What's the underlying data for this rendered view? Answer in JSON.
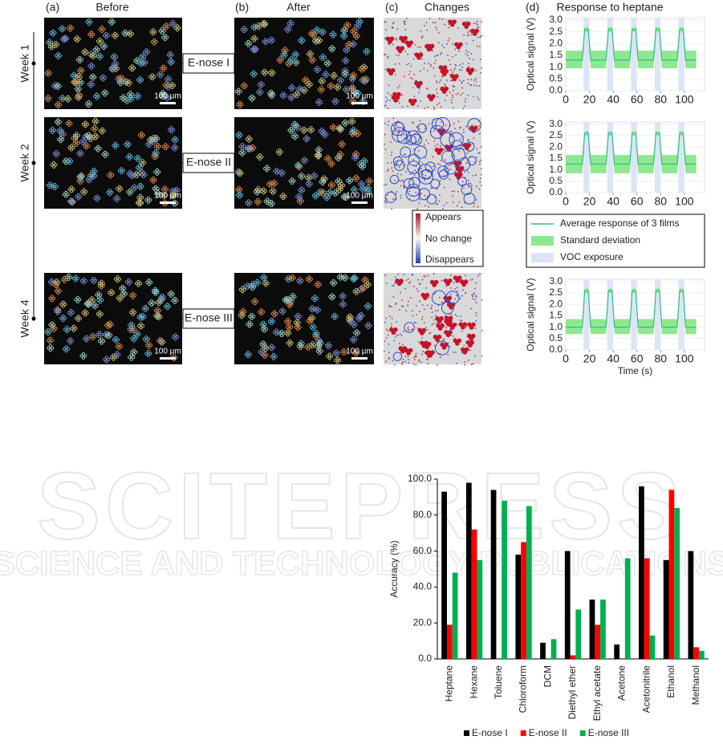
{
  "figure": {
    "panel_labels": [
      "(a)",
      "(b)",
      "(c)",
      "(d)"
    ],
    "column_titles": [
      "Before",
      "After",
      "Changes",
      "Response to heptane"
    ],
    "row_labels": [
      "Week 1",
      "Week 2",
      "Week 4"
    ],
    "enose_labels": [
      "E-nose I",
      "E-nose II",
      "E-nose III"
    ],
    "scale_bar": "100 µm",
    "change_legend": [
      "Appears",
      "No change",
      "Disappears"
    ],
    "response_legend": [
      {
        "label": "Average response of 3 films",
        "color": "#2bbf8a"
      },
      {
        "label": "Standard deviation",
        "color": "#8fe88f"
      },
      {
        "label": "VOC exposure",
        "color": "#dde4f6"
      }
    ],
    "watermark": [
      "SCITEPRESS",
      "SCIENCE AND TECHNOLOGY PUBLICATIONS"
    ]
  },
  "chart_data": [
    {
      "type": "line",
      "ylabel": "Optical signal (V)",
      "x": [
        0,
        14,
        16,
        19,
        21,
        34,
        36,
        39,
        41,
        54,
        56,
        59,
        61,
        74,
        76,
        79,
        81,
        94,
        96,
        99,
        101,
        110
      ],
      "values": [
        1.3,
        1.3,
        2.6,
        2.6,
        1.3,
        1.3,
        2.6,
        2.6,
        1.3,
        1.3,
        2.6,
        2.6,
        1.3,
        1.3,
        2.6,
        2.6,
        1.3,
        1.3,
        2.6,
        2.6,
        1.3,
        1.3
      ],
      "lower": [
        0.95,
        0.95,
        2.5,
        2.5,
        0.95,
        0.95,
        2.5,
        2.5,
        0.95,
        0.95,
        2.5,
        2.5,
        0.95,
        0.95,
        2.5,
        2.5,
        0.95,
        0.95,
        2.5,
        2.5,
        0.95,
        0.95
      ],
      "upper": [
        1.7,
        1.7,
        2.7,
        2.7,
        1.7,
        1.7,
        2.7,
        2.7,
        1.7,
        1.7,
        2.7,
        2.7,
        1.7,
        1.7,
        2.7,
        2.7,
        1.7,
        1.7,
        2.7,
        2.7,
        1.7,
        1.7
      ],
      "exposures": [
        [
          15,
          20
        ],
        [
          35,
          40
        ],
        [
          55,
          60
        ],
        [
          75,
          80
        ],
        [
          95,
          100
        ]
      ],
      "xlim": [
        0,
        117
      ],
      "xticks": [
        0,
        20,
        40,
        60,
        80,
        100
      ],
      "ylim": [
        0,
        3.1
      ],
      "yticks": [
        {
          "value": 0,
          "label": "0.0"
        },
        {
          "value": 0.5,
          "label": "0.5"
        },
        {
          "value": 1,
          "label": "1.0"
        },
        {
          "value": 1.5,
          "label": "1.5"
        },
        {
          "value": 2,
          "label": "2.0"
        },
        {
          "value": 2.5,
          "label": "2.5"
        },
        {
          "value": 3,
          "label": "3.0"
        }
      ]
    },
    {
      "type": "line",
      "ylabel": "Optical signal (V)",
      "x": [
        0,
        14,
        16,
        19,
        21,
        34,
        36,
        39,
        41,
        54,
        56,
        59,
        61,
        74,
        76,
        79,
        81,
        94,
        96,
        99,
        101,
        110
      ],
      "values": [
        1.25,
        1.25,
        2.6,
        2.6,
        1.25,
        1.25,
        2.6,
        2.6,
        1.25,
        1.25,
        2.6,
        2.6,
        1.25,
        1.25,
        2.6,
        2.6,
        1.25,
        1.25,
        2.6,
        2.6,
        1.25,
        1.25
      ],
      "lower": [
        0.85,
        0.85,
        2.5,
        2.5,
        0.85,
        0.85,
        2.5,
        2.5,
        0.85,
        0.85,
        2.5,
        2.5,
        0.85,
        0.85,
        2.5,
        2.5,
        0.85,
        0.85,
        2.5,
        2.5,
        0.85,
        0.85
      ],
      "upper": [
        1.65,
        1.65,
        2.7,
        2.7,
        1.65,
        1.65,
        2.7,
        2.7,
        1.65,
        1.65,
        2.7,
        2.7,
        1.65,
        1.65,
        2.7,
        2.7,
        1.65,
        1.65,
        2.7,
        2.7,
        1.65,
        1.65
      ],
      "exposures": [
        [
          15,
          20
        ],
        [
          35,
          40
        ],
        [
          55,
          60
        ],
        [
          75,
          80
        ],
        [
          95,
          100
        ]
      ],
      "xlim": [
        0,
        117
      ],
      "xticks": [
        0,
        20,
        40,
        60,
        80,
        100
      ],
      "ylim": [
        0,
        3.1
      ],
      "yticks": [
        {
          "value": 0,
          "label": "0.0"
        },
        {
          "value": 0.5,
          "label": "0.5"
        },
        {
          "value": 1,
          "label": "1.0"
        },
        {
          "value": 1.5,
          "label": "1.5"
        },
        {
          "value": 2,
          "label": "2.0"
        },
        {
          "value": 2.5,
          "label": "2.5"
        },
        {
          "value": 3,
          "label": "3.0"
        }
      ]
    },
    {
      "type": "line",
      "ylabel": "Optical signal (V)",
      "xlabel": "Time (s)",
      "x": [
        0,
        14,
        16,
        19,
        21,
        34,
        36,
        39,
        41,
        54,
        56,
        59,
        61,
        74,
        76,
        79,
        81,
        94,
        96,
        99,
        101,
        110
      ],
      "values": [
        1.0,
        1.0,
        2.6,
        2.6,
        1.0,
        1.0,
        2.6,
        2.6,
        1.0,
        1.0,
        2.6,
        2.6,
        1.0,
        1.0,
        2.6,
        2.6,
        1.0,
        1.0,
        2.6,
        2.6,
        1.0,
        1.0
      ],
      "lower": [
        0.7,
        0.7,
        2.5,
        2.5,
        0.7,
        0.7,
        2.5,
        2.5,
        0.7,
        0.7,
        2.5,
        2.5,
        0.7,
        0.7,
        2.5,
        2.5,
        0.7,
        0.7,
        2.5,
        2.5,
        0.7,
        0.7
      ],
      "upper": [
        1.35,
        1.35,
        2.7,
        2.7,
        1.35,
        1.35,
        2.7,
        2.7,
        1.35,
        1.35,
        2.7,
        2.7,
        1.35,
        1.35,
        2.7,
        2.7,
        1.35,
        1.35,
        2.7,
        2.7,
        1.35,
        1.35
      ],
      "exposures": [
        [
          15,
          20
        ],
        [
          35,
          40
        ],
        [
          55,
          60
        ],
        [
          75,
          80
        ],
        [
          95,
          100
        ]
      ],
      "xlim": [
        0,
        117
      ],
      "xticks": [
        0,
        20,
        40,
        60,
        80,
        100
      ],
      "ylim": [
        0,
        3.1
      ],
      "yticks": [
        {
          "value": 0,
          "label": "0.0"
        },
        {
          "value": 0.5,
          "label": "0.5"
        },
        {
          "value": 1,
          "label": "1.0"
        },
        {
          "value": 1.5,
          "label": "1.5"
        },
        {
          "value": 2,
          "label": "2.0"
        },
        {
          "value": 2.5,
          "label": "2.5"
        },
        {
          "value": 3,
          "label": "3.0"
        }
      ]
    },
    {
      "type": "bar",
      "ylabel": "Accuracy (%)",
      "categories": [
        "Heptane",
        "Hexane",
        "Toluene",
        "Chloroform",
        "DCM",
        "Diethyl ether",
        "Ethyl acetate",
        "Acetone",
        "Acetonitrile",
        "Ethanol",
        "Methanol"
      ],
      "series": [
        {
          "name": "E-nose I",
          "color": "#000000",
          "values": [
            93,
            98,
            94,
            58,
            9,
            60,
            33,
            8,
            96,
            55,
            60
          ]
        },
        {
          "name": "E-nose II",
          "color": "#ff0000",
          "values": [
            19,
            72,
            0,
            65,
            0,
            2,
            19,
            0,
            56,
            94,
            6.5
          ]
        },
        {
          "name": "E-nose III",
          "color": "#00b050",
          "values": [
            48,
            55,
            88,
            85,
            11,
            27.5,
            33,
            56,
            13,
            84,
            4.5
          ]
        }
      ],
      "ylim": [
        0,
        100
      ],
      "yticks": [
        {
          "value": 0,
          "label": "0.0"
        },
        {
          "value": 20,
          "label": "20.0"
        },
        {
          "value": 40,
          "label": "40.0"
        },
        {
          "value": 60,
          "label": "60.0"
        },
        {
          "value": 80,
          "label": "80.0"
        },
        {
          "value": 100,
          "label": "100.0"
        }
      ]
    }
  ]
}
